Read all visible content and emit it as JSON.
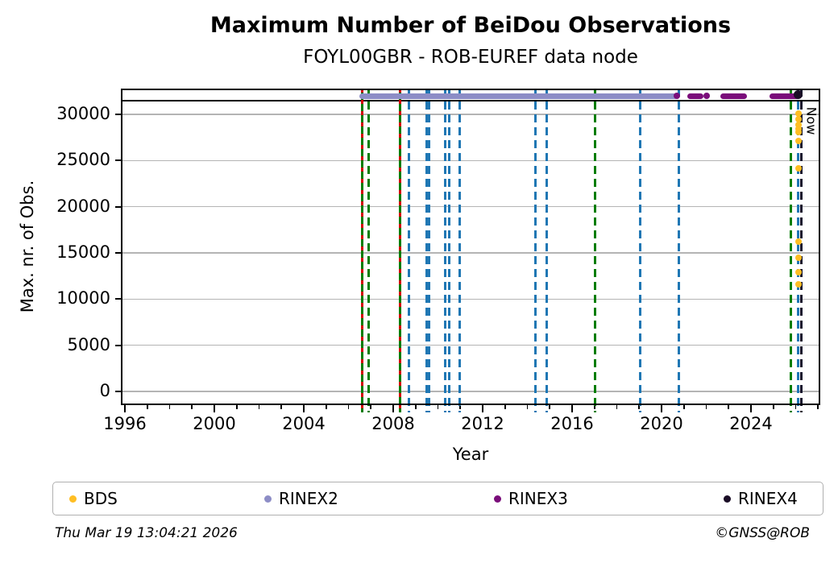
{
  "title": "Maximum Number of BeiDou Observations",
  "subtitle": "FOYL00GBR - ROB-EUREF data node",
  "footer": {
    "timestamp": "Thu Mar 19 13:04:21 2026",
    "credit": "©GNSS@ROB"
  },
  "chart_data": {
    "type": "scatter",
    "title": "Maximum Number of BeiDou Observations",
    "subtitle": "FOYL00GBR - ROB-EUREF data node",
    "xlabel": "Year",
    "ylabel": "Max. nr. of Obs.",
    "xlim": [
      1995.82,
      2027.1
    ],
    "ylim": [
      -1480,
      32790
    ],
    "xticks": [
      1996,
      2000,
      2004,
      2008,
      2012,
      2016,
      2020,
      2024
    ],
    "xticks_minor_start": 1996,
    "xticks_minor_end": 2027,
    "yticks": [
      0,
      5000,
      10000,
      15000,
      20000,
      25000,
      30000
    ],
    "grid": "horizontal-only",
    "gridline_color": "#b4b4b4",
    "reference_line_value": 31500,
    "now_line": {
      "year": 2026.24,
      "label": "Now",
      "color": "#15152e",
      "style": "dashed"
    },
    "event_lines": [
      {
        "year": 2006.63,
        "style": "greenred"
      },
      {
        "year": 2006.9,
        "style": "green"
      },
      {
        "year": 2008.31,
        "style": "greenred"
      },
      {
        "year": 2008.72,
        "style": "blue"
      },
      {
        "year": 2009.48,
        "style": "blue"
      },
      {
        "year": 2009.6,
        "style": "blue"
      },
      {
        "year": 2010.34,
        "style": "blue"
      },
      {
        "year": 2010.49,
        "style": "blue"
      },
      {
        "year": 2010.99,
        "style": "blue"
      },
      {
        "year": 2014.36,
        "style": "blue"
      },
      {
        "year": 2014.86,
        "style": "blue"
      },
      {
        "year": 2017.03,
        "style": "green"
      },
      {
        "year": 2019.03,
        "style": "blue"
      },
      {
        "year": 2020.77,
        "style": "blue"
      },
      {
        "year": 2025.79,
        "style": "green"
      },
      {
        "year": 2026.12,
        "style": "blue"
      }
    ],
    "event_line_colors": {
      "blue": "#1f77b4",
      "green": "#007d00",
      "red": "#d40000"
    },
    "series": [
      {
        "name": "BDS",
        "color": "#ffbe23",
        "marker": "dot",
        "x": 2026.12,
        "values": [
          30100,
          29500,
          28900,
          28400,
          28100,
          27100,
          24200,
          16200,
          14500,
          12900,
          11600
        ]
      },
      {
        "name": "RINEX2",
        "color": "#8d8dc6",
        "marker": "thick-line",
        "y": 32000,
        "segments": [
          [
            2006.59,
            2020.62
          ]
        ],
        "dots": []
      },
      {
        "name": "RINEX3",
        "color": "#7a0d7a",
        "marker": "thick-line",
        "y": 32000,
        "segments": [
          [
            2021.26,
            2021.77
          ],
          [
            2022.74,
            2023.71
          ],
          [
            2024.94,
            2026.06
          ]
        ],
        "dots": [
          2020.67,
          2022.02
        ]
      },
      {
        "name": "RINEX4",
        "color": "#1a0d26",
        "marker": "dot",
        "y": 32100,
        "segments": [],
        "dots": [
          2026.1
        ]
      }
    ],
    "legend": {
      "position": "bottom",
      "entries": [
        "BDS",
        "RINEX2",
        "RINEX3",
        "RINEX4"
      ]
    }
  }
}
